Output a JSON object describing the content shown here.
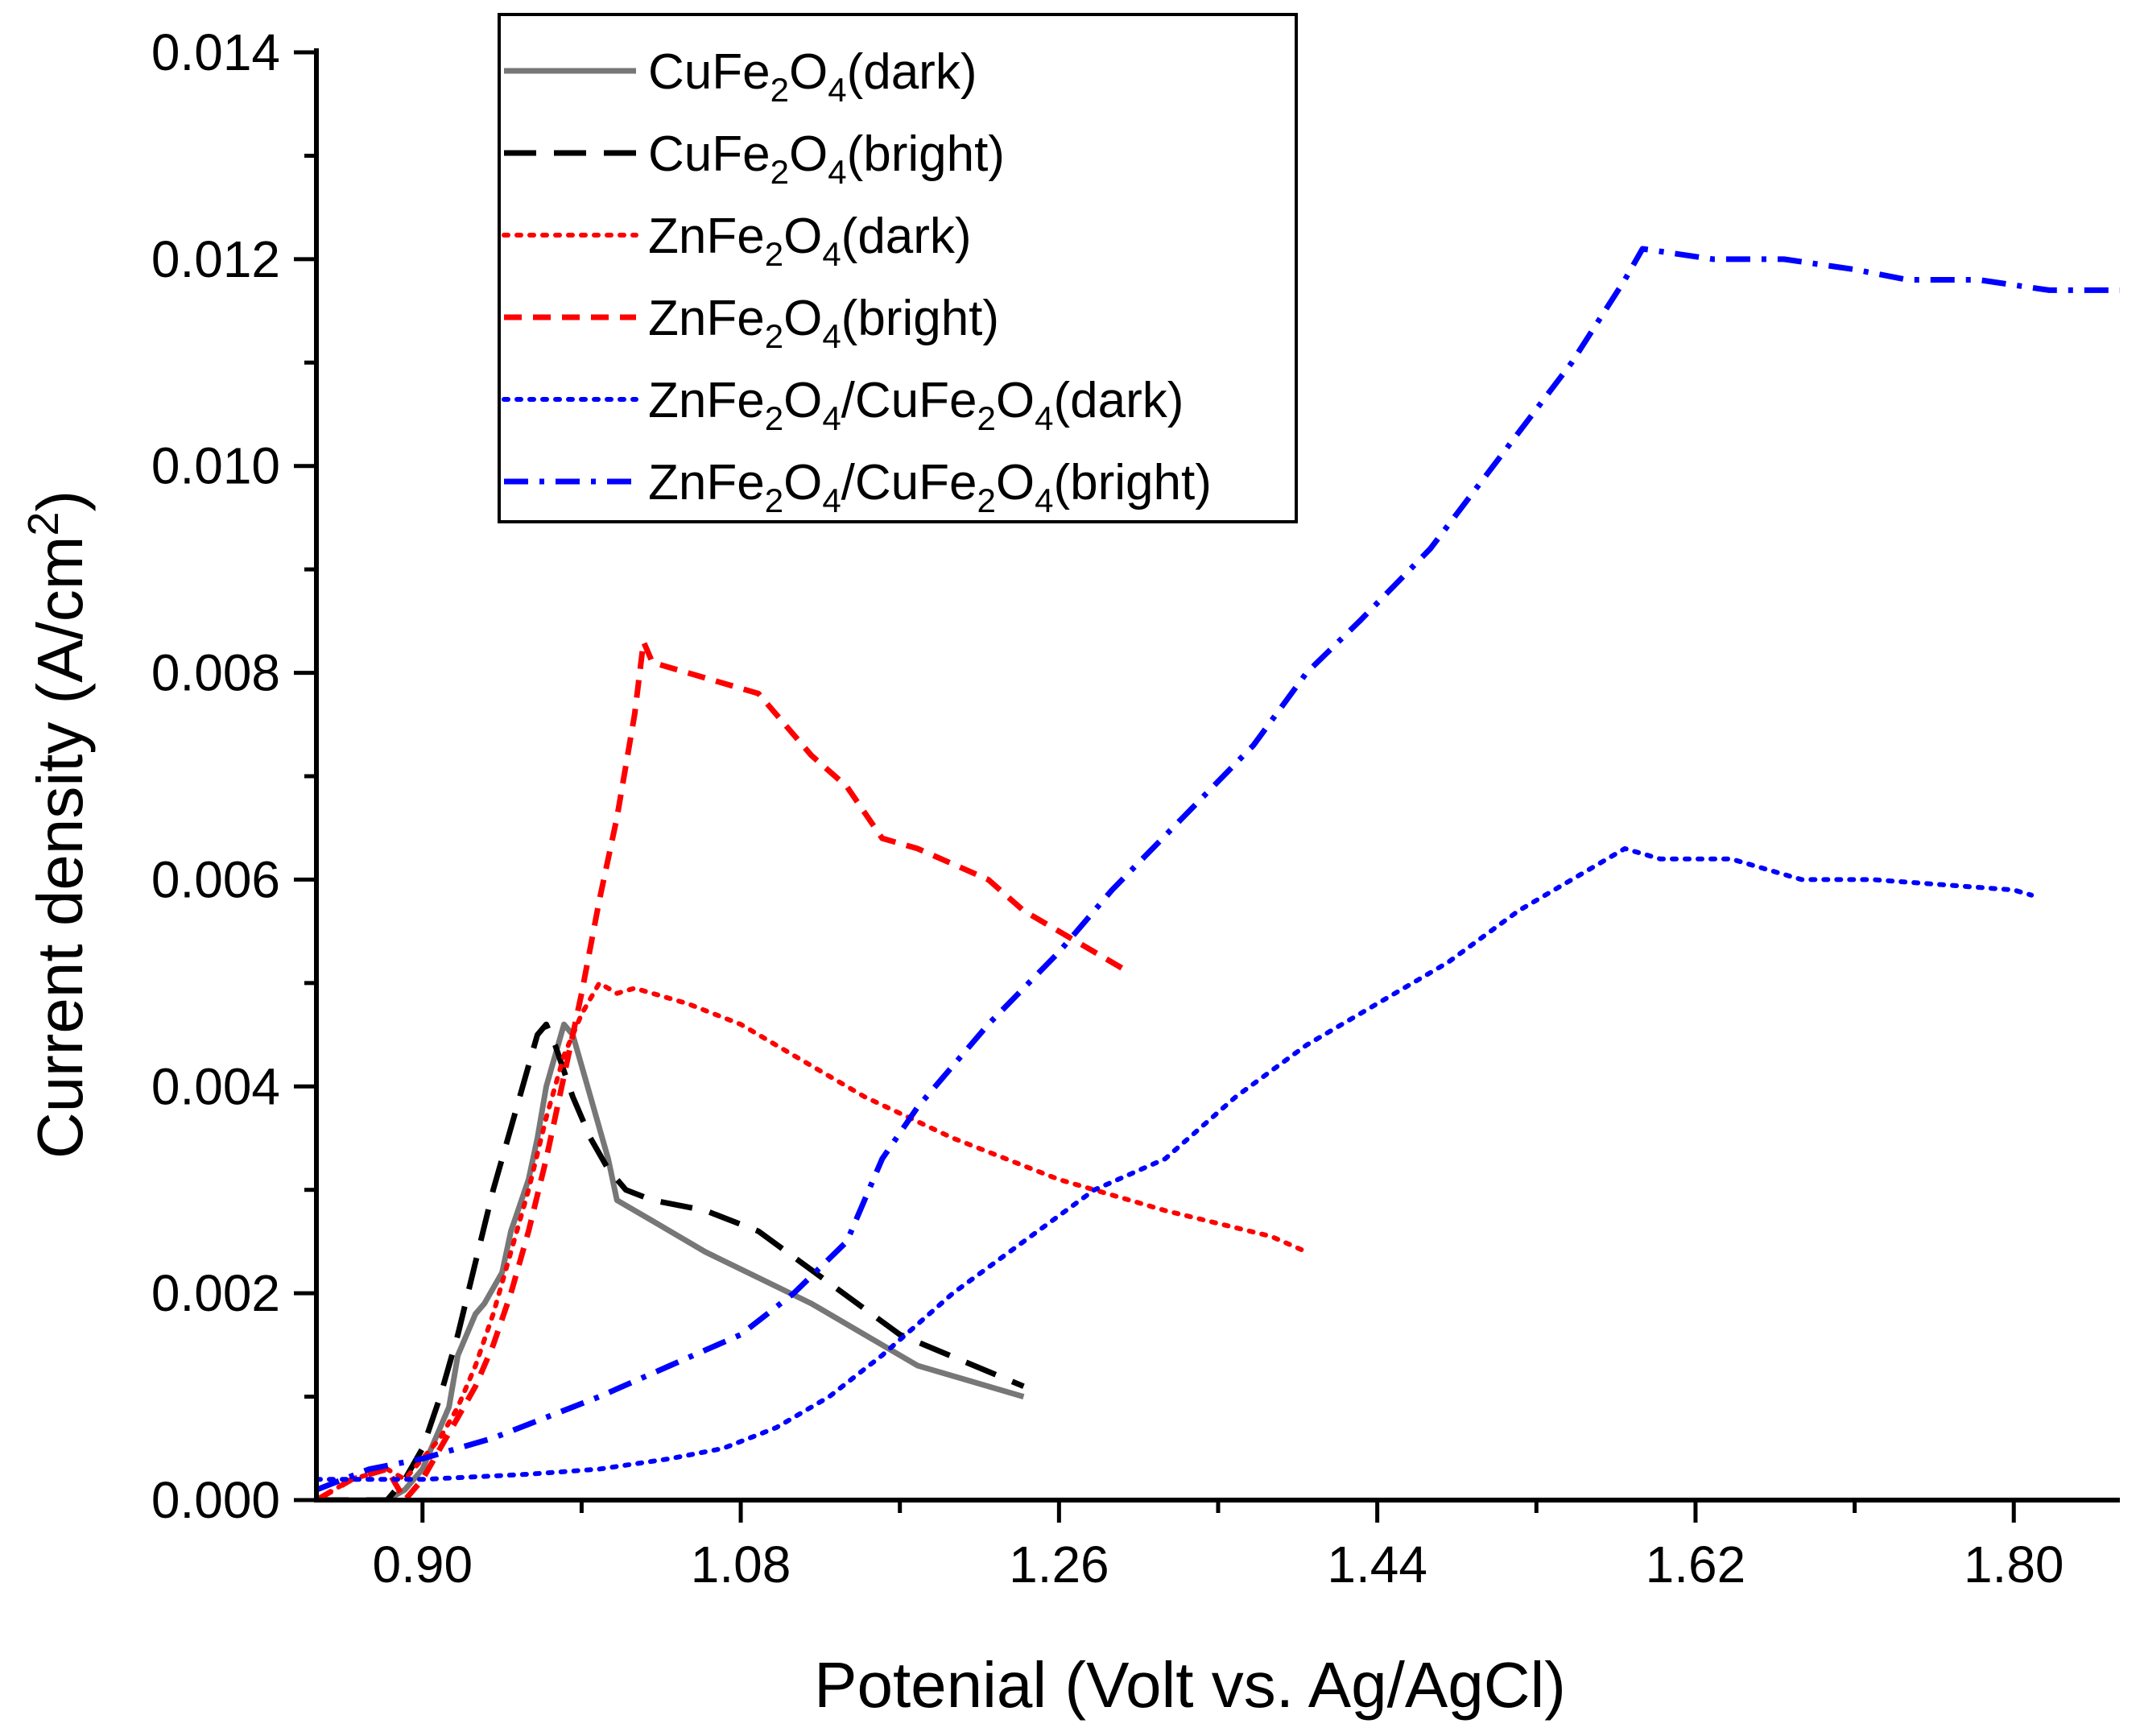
{
  "chart_data": {
    "type": "line",
    "title": "",
    "xlabel": "Potenial (Volt vs. Ag/AgCl)",
    "ylabel": {
      "prefix": "Current density (A/cm",
      "sup": "2",
      "suffix": ")"
    },
    "xlim": [
      0.84,
      1.86
    ],
    "ylim": [
      0,
      0.014
    ],
    "xticks": [
      0.9,
      1.08,
      1.26,
      1.44,
      1.62,
      1.8
    ],
    "xtick_labels": [
      "0.90",
      "1.08",
      "1.26",
      "1.44",
      "1.62",
      "1.80"
    ],
    "xminor": [
      0.99,
      1.17,
      1.35,
      1.53,
      1.71
    ],
    "yticks": [
      0,
      0.002,
      0.004,
      0.006,
      0.008,
      0.01,
      0.012,
      0.014
    ],
    "ytick_labels": [
      "0.000",
      "0.002",
      "0.004",
      "0.006",
      "0.008",
      "0.010",
      "0.012",
      "0.014"
    ],
    "yminor": [
      0.001,
      0.003,
      0.005,
      0.007,
      0.009,
      0.011,
      0.013
    ],
    "grid": false,
    "legend_position": "top-left",
    "series": [
      {
        "name": "CuFe2O4(dark)",
        "label_parts": [
          [
            "CuFe",
            ""
          ],
          [
            "2",
            "sub"
          ],
          [
            "O",
            ""
          ],
          [
            "4",
            "sub"
          ],
          [
            "(dark)",
            ""
          ]
        ],
        "color": "#777777",
        "style": "solid",
        "x": [
          0.84,
          0.86,
          0.88,
          0.89,
          0.9,
          0.905,
          0.915,
          0.92,
          0.93,
          0.935,
          0.945,
          0.95,
          0.96,
          0.965,
          0.97,
          0.975,
          0.98,
          0.985,
          0.995,
          1.005,
          1.01,
          1.03,
          1.06,
          1.09,
          1.12,
          1.18,
          1.2,
          1.24
        ],
        "y": [
          0.0,
          0.0,
          0.0,
          0.0001,
          0.0003,
          0.0005,
          0.0009,
          0.0014,
          0.0018,
          0.0019,
          0.0022,
          0.0026,
          0.0031,
          0.0035,
          0.004,
          0.0043,
          0.0046,
          0.0045,
          0.0039,
          0.0033,
          0.0029,
          0.0027,
          0.0024,
          0.00215,
          0.0019,
          0.0013,
          0.0012,
          0.001
        ]
      },
      {
        "name": "CuFe2O4(bright)",
        "label_parts": [
          [
            "CuFe",
            ""
          ],
          [
            "2",
            "sub"
          ],
          [
            "O",
            ""
          ],
          [
            "4",
            "sub"
          ],
          [
            "(bright)",
            ""
          ]
        ],
        "color": "#000000",
        "style": "dashed",
        "x": [
          0.84,
          0.86,
          0.88,
          0.89,
          0.9,
          0.91,
          0.92,
          0.93,
          0.94,
          0.95,
          0.96,
          0.965,
          0.97,
          0.975,
          0.985,
          0.995,
          1.005,
          1.015,
          1.03,
          1.06,
          1.09,
          1.13,
          1.17,
          1.24
        ],
        "y": [
          0.0,
          0.0,
          0.0,
          0.0002,
          0.0005,
          0.001,
          0.0016,
          0.0023,
          0.003,
          0.0036,
          0.0042,
          0.0045,
          0.0046,
          0.0044,
          0.0039,
          0.0035,
          0.0032,
          0.003,
          0.0029,
          0.0028,
          0.0026,
          0.0021,
          0.0016,
          0.0011
        ]
      },
      {
        "name": "ZnFe2O4(dark)",
        "label_parts": [
          [
            "ZnFe",
            ""
          ],
          [
            "2",
            "sub"
          ],
          [
            "O",
            ""
          ],
          [
            "4",
            "sub"
          ],
          [
            "(dark)",
            ""
          ]
        ],
        "color": "#ff0000",
        "style": "dotted",
        "x": [
          0.84,
          0.86,
          0.88,
          0.89,
          0.9,
          0.91,
          0.92,
          0.93,
          0.94,
          0.95,
          0.96,
          0.97,
          0.98,
          0.99,
          1.0,
          1.01,
          1.02,
          1.05,
          1.08,
          1.11,
          1.15,
          1.2,
          1.26,
          1.32,
          1.38,
          1.4
        ],
        "y": [
          0.0,
          0.0002,
          0.0003,
          0.0002,
          0.0004,
          0.0006,
          0.0009,
          0.0013,
          0.0018,
          0.0024,
          0.003,
          0.0037,
          0.0043,
          0.0047,
          0.005,
          0.0049,
          0.00495,
          0.0048,
          0.0046,
          0.0043,
          0.0039,
          0.0035,
          0.0031,
          0.0028,
          0.00255,
          0.0024
        ]
      },
      {
        "name": "ZnFe2O4(bright)",
        "label_parts": [
          [
            "ZnFe",
            ""
          ],
          [
            "2",
            "sub"
          ],
          [
            "O",
            ""
          ],
          [
            "4",
            "sub"
          ],
          [
            "(bright)",
            ""
          ]
        ],
        "color": "#ff0000",
        "style": "shortdash",
        "x": [
          0.84,
          0.86,
          0.88,
          0.89,
          0.9,
          0.91,
          0.92,
          0.93,
          0.94,
          0.95,
          0.96,
          0.97,
          0.98,
          0.99,
          1.0,
          1.01,
          1.02,
          1.025,
          1.03,
          1.05,
          1.09,
          1.12,
          1.14,
          1.16,
          1.18,
          1.22,
          1.24,
          1.28,
          1.3
        ],
        "y": [
          0.0,
          0.0002,
          0.0003,
          0.0,
          0.0002,
          0.0005,
          0.0008,
          0.0011,
          0.0015,
          0.002,
          0.0026,
          0.0033,
          0.0041,
          0.0049,
          0.0058,
          0.0066,
          0.0076,
          0.0083,
          0.0081,
          0.008,
          0.0078,
          0.0072,
          0.0069,
          0.0064,
          0.0063,
          0.006,
          0.0057,
          0.0053,
          0.0051
        ]
      },
      {
        "name": "ZnFe2O4/CuFe2O4(dark)",
        "label_parts": [
          [
            "ZnFe",
            ""
          ],
          [
            "2",
            "sub"
          ],
          [
            "O",
            ""
          ],
          [
            "4",
            "sub"
          ],
          [
            "/CuFe",
            ""
          ],
          [
            "2",
            "sub"
          ],
          [
            "O",
            ""
          ],
          [
            "4",
            "sub"
          ],
          [
            "(dark)",
            ""
          ]
        ],
        "color": "#0000ff",
        "style": "dotted",
        "x": [
          0.84,
          0.9,
          0.96,
          1.0,
          1.04,
          1.07,
          1.1,
          1.13,
          1.16,
          1.2,
          1.24,
          1.28,
          1.32,
          1.36,
          1.4,
          1.44,
          1.48,
          1.52,
          1.56,
          1.58,
          1.6,
          1.64,
          1.68,
          1.72,
          1.76,
          1.8,
          1.81
        ],
        "y": [
          0.0002,
          0.0002,
          0.00025,
          0.0003,
          0.0004,
          0.0005,
          0.0007,
          0.001,
          0.0014,
          0.002,
          0.0025,
          0.003,
          0.0033,
          0.0039,
          0.0044,
          0.0048,
          0.0052,
          0.0057,
          0.0061,
          0.0063,
          0.0062,
          0.0062,
          0.006,
          0.006,
          0.00595,
          0.0059,
          0.00585
        ]
      },
      {
        "name": "ZnFe2O4/CuFe2O4(bright)",
        "label_parts": [
          [
            "ZnFe",
            ""
          ],
          [
            "2",
            "sub"
          ],
          [
            "O",
            ""
          ],
          [
            "4",
            "sub"
          ],
          [
            "/CuFe",
            ""
          ],
          [
            "2",
            "sub"
          ],
          [
            "O",
            ""
          ],
          [
            "4",
            "sub"
          ],
          [
            "(bright)",
            ""
          ]
        ],
        "color": "#0000ff",
        "style": "dashdot",
        "x": [
          0.84,
          0.87,
          0.9,
          0.94,
          0.97,
          1.0,
          1.04,
          1.08,
          1.11,
          1.14,
          1.16,
          1.18,
          1.22,
          1.26,
          1.29,
          1.33,
          1.37,
          1.4,
          1.43,
          1.47,
          1.51,
          1.55,
          1.58,
          1.59,
          1.63,
          1.67,
          1.71,
          1.74,
          1.78,
          1.82,
          1.86
        ],
        "y": [
          0.0001,
          0.0003,
          0.0004,
          0.0006,
          0.0008,
          0.001,
          0.0013,
          0.0016,
          0.002,
          0.0025,
          0.0033,
          0.0038,
          0.0046,
          0.0053,
          0.0059,
          0.0066,
          0.0073,
          0.008,
          0.0085,
          0.0092,
          0.0101,
          0.011,
          0.0118,
          0.0121,
          0.012,
          0.012,
          0.0119,
          0.0118,
          0.0118,
          0.0117,
          0.0117
        ]
      }
    ]
  }
}
